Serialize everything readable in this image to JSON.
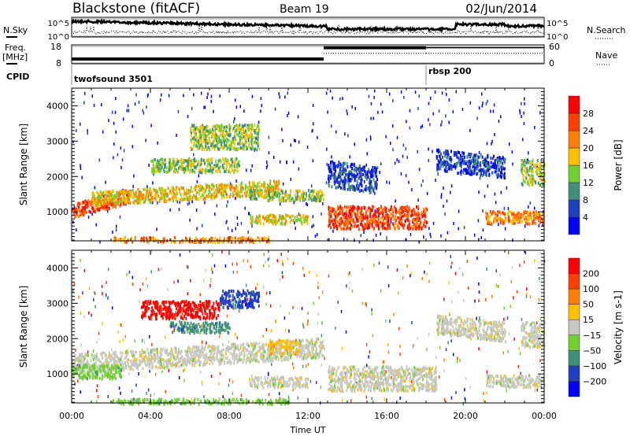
{
  "header": {
    "station": "Blackstone (fitACF)",
    "beam": "Beam 19",
    "date": "02/Jun/2014"
  },
  "colors": {
    "power": [
      "#0000ff",
      "#2040c0",
      "#40907a",
      "#70d030",
      "#ffc000",
      "#ff8000",
      "#ff4000",
      "#ff0000"
    ],
    "velocity": [
      "#0000ff",
      "#2040c0",
      "#40907a",
      "#70d030",
      "#c8c8c0",
      "#ffc000",
      "#ff8000",
      "#ff4000",
      "#ff0000"
    ]
  },
  "chart_data": [
    {
      "type": "line",
      "name": "noise",
      "left_label": "N.Sky",
      "right_label": "N.Search",
      "left_ticks": [
        "10^5",
        "10^0"
      ],
      "right_ticks": [
        "10^5",
        "10^0"
      ]
    },
    {
      "type": "line",
      "name": "frequency-nave",
      "left_label": "Freq.",
      "left_unit": "[MHz]",
      "right_label": "Nave",
      "left_ticks": [
        "18",
        "8"
      ],
      "right_ticks": [
        "60",
        "0"
      ],
      "segments": [
        {
          "t0": 0,
          "t1": 12.8,
          "freq": 10.5,
          "nave": 17
        },
        {
          "t0": 12.8,
          "t1": 18,
          "freq": 16.5,
          "nave": 33
        },
        {
          "t0": 18,
          "t1": 24,
          "freq": 16.5,
          "nave": 33
        }
      ]
    },
    {
      "type": "table",
      "name": "cpid",
      "label": "CPID",
      "entries": [
        {
          "t": 0,
          "text": "twofsound 3501"
        },
        {
          "t": 18,
          "text": "rbsp 200"
        }
      ]
    },
    {
      "type": "heatmap",
      "name": "power",
      "ylabel": "Slant Range [km]",
      "xlabel": "Time UT",
      "ylim": [
        180,
        4500
      ],
      "xlim": [
        0,
        24
      ],
      "yticks": [
        "1000",
        "2000",
        "3000",
        "4000"
      ],
      "xticks": [
        "00:00",
        "04:00",
        "08:00",
        "12:00",
        "16:00",
        "20:00",
        "00:00"
      ],
      "colorbar_label": "Power [dB]",
      "colorbar_ticks": [
        "4",
        "8",
        "12",
        "16",
        "20",
        "24",
        "28"
      ],
      "regions": [
        {
          "t0": 0,
          "t1": 3,
          "r0": 850,
          "r1": 1250,
          "level": 6,
          "slope": 150
        },
        {
          "t0": 1,
          "t1": 10.5,
          "r0": 1200,
          "r1": 1600,
          "level": 4,
          "slope": 35
        },
        {
          "t0": 9,
          "t1": 12.8,
          "r0": 1350,
          "r1": 1650,
          "level": 3,
          "slope": 0
        },
        {
          "t0": 4,
          "t1": 8.5,
          "r0": 2150,
          "r1": 2550,
          "level": 3,
          "slope": 0
        },
        {
          "t0": 6,
          "t1": 9.5,
          "r0": 2800,
          "r1": 3500,
          "level": 3,
          "slope": 0
        },
        {
          "t0": 9,
          "t1": 12,
          "r0": 700,
          "r1": 950,
          "level": 4,
          "slope": 0
        },
        {
          "t0": 13,
          "t1": 18,
          "r0": 550,
          "r1": 1200,
          "level": 6,
          "slope": 0
        },
        {
          "t0": 13,
          "t1": 15.5,
          "r0": 1750,
          "r1": 2500,
          "level": 1,
          "slope": -80
        },
        {
          "t0": 18.5,
          "t1": 22,
          "r0": 2200,
          "r1": 2800,
          "level": 1,
          "slope": -60
        },
        {
          "t0": 21,
          "t1": 24,
          "r0": 700,
          "r1": 1050,
          "level": 5,
          "slope": 0
        },
        {
          "t0": 22.8,
          "t1": 24,
          "r0": 1800,
          "r1": 2500,
          "level": 3,
          "slope": 0
        },
        {
          "t0": 2,
          "t1": 10,
          "r0": 180,
          "r1": 320,
          "level": 5,
          "slope": 0
        }
      ]
    },
    {
      "type": "heatmap",
      "name": "velocity",
      "ylabel": "Slant Range [km]",
      "xlabel": "Time UT",
      "ylim": [
        180,
        4500
      ],
      "xlim": [
        0,
        24
      ],
      "yticks": [
        "1000",
        "2000",
        "3000",
        "4000"
      ],
      "xticks": [
        "00:00",
        "04:00",
        "08:00",
        "12:00",
        "16:00",
        "20:00",
        "00:00"
      ],
      "colorbar_label": "Velocity [m s-1]",
      "colorbar_ticks": [
        "200",
        "100",
        "50",
        "15",
        "-15",
        "-50",
        "-100",
        "-200"
      ],
      "regions": [
        {
          "t0": 0,
          "t1": 12.8,
          "r0": 1050,
          "r1": 1600,
          "level": 4,
          "slope": 35
        },
        {
          "t0": 0,
          "t1": 2.5,
          "r0": 900,
          "r1": 1300,
          "level": 5,
          "slope": 0
        },
        {
          "t0": 3.5,
          "t1": 7.5,
          "r0": 2600,
          "r1": 3100,
          "level": 0,
          "slope": 0
        },
        {
          "t0": 7.5,
          "t1": 9.5,
          "r0": 2900,
          "r1": 3400,
          "level": 7,
          "slope": 0
        },
        {
          "t0": 5,
          "t1": 8,
          "r0": 2200,
          "r1": 2500,
          "level": 6,
          "slope": 0
        },
        {
          "t0": 9,
          "t1": 12,
          "r0": 650,
          "r1": 950,
          "level": 4,
          "slope": 0
        },
        {
          "t0": 13,
          "t1": 18.5,
          "r0": 550,
          "r1": 1250,
          "level": 4,
          "slope": 0
        },
        {
          "t0": 10,
          "t1": 11.5,
          "r0": 1600,
          "r1": 2000,
          "level": 3,
          "slope": 0
        },
        {
          "t0": 18.5,
          "t1": 22,
          "r0": 2150,
          "r1": 2700,
          "level": 4,
          "slope": -60
        },
        {
          "t0": 21,
          "t1": 24,
          "r0": 650,
          "r1": 1000,
          "level": 4,
          "slope": 0
        },
        {
          "t0": 22.8,
          "t1": 24,
          "r0": 1800,
          "r1": 2500,
          "level": 4,
          "slope": 0
        },
        {
          "t0": 2,
          "t1": 11,
          "r0": 180,
          "r1": 330,
          "level": 5,
          "slope": 0
        }
      ]
    }
  ]
}
